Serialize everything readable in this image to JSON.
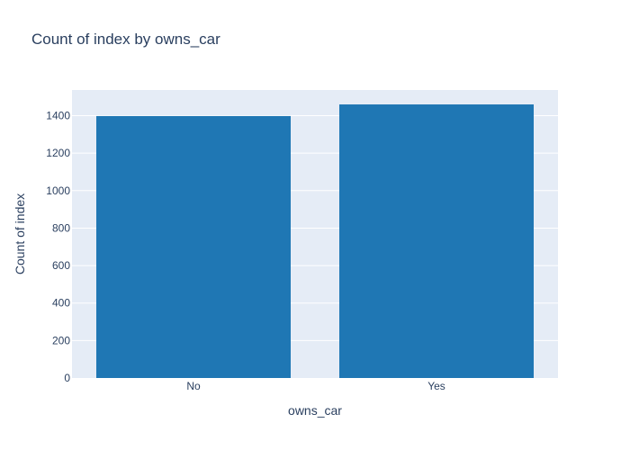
{
  "chart_data": {
    "type": "bar",
    "title": "Count of index by owns_car",
    "xlabel": "owns_car",
    "ylabel": "Count of index",
    "categories": [
      "No",
      "Yes"
    ],
    "values": [
      1398,
      1460
    ],
    "ylim": [
      0,
      1537
    ],
    "yticks": [
      0,
      200,
      400,
      600,
      800,
      1000,
      1200,
      1400
    ],
    "grid": true,
    "legend": "none",
    "colors": {
      "bar": "#1f77b4",
      "plot_bg": "#e5ecf6",
      "grid": "#ffffff",
      "text": "#2a3f5f"
    }
  }
}
